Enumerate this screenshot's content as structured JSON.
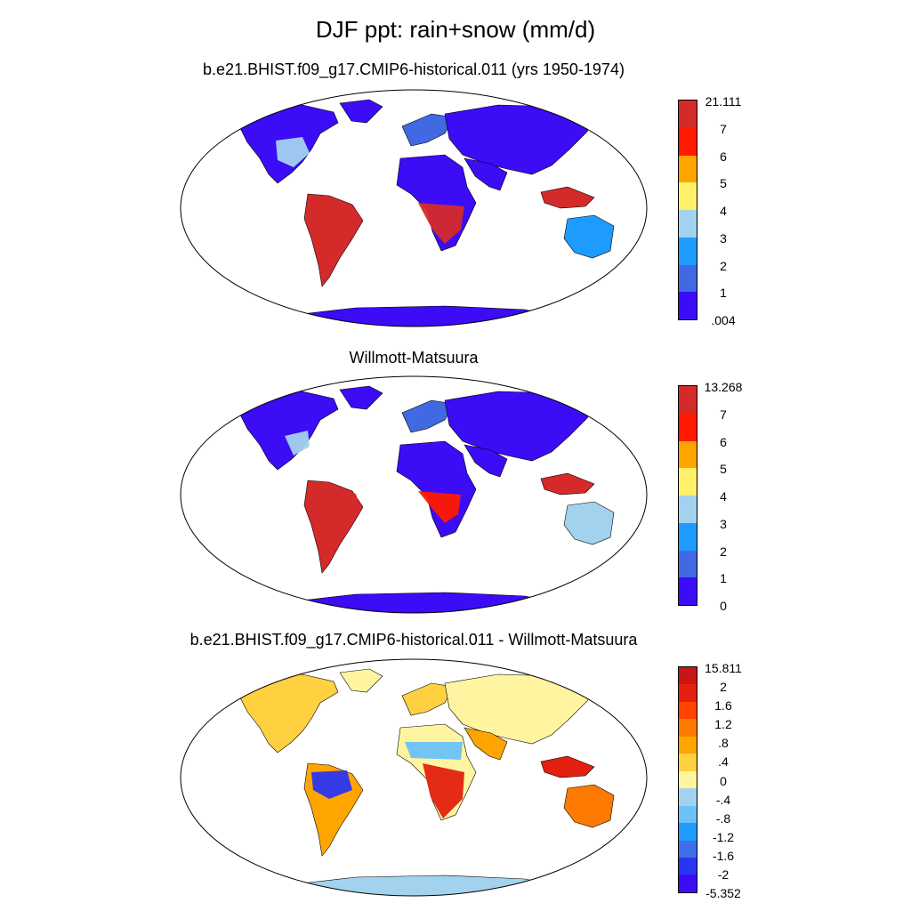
{
  "title": "DJF ppt: rain+snow (mm/d)",
  "colors": {
    "seq": [
      "#3b0cf5",
      "#4169e1",
      "#1e9bff",
      "#a3d2ef",
      "#fff06a",
      "#ffa500",
      "#ff1a00",
      "#d52a2a"
    ],
    "div": [
      "#3b0cf5",
      "#2a35f0",
      "#3d6fe8",
      "#1e9bff",
      "#6cc1f7",
      "#a3d2ef",
      "#fff5a0",
      "#ffd040",
      "#ffa500",
      "#ff7a00",
      "#ff4400",
      "#e3200f",
      "#c81515"
    ]
  },
  "panels": [
    {
      "id": "model",
      "title": "b.e21.BHIST.f09_g17.CMIP6-historical.011 (yrs 1950-1974)",
      "palette": "seq",
      "ticks": [
        "21.111",
        "7",
        "6",
        "5",
        "4",
        "3",
        "2",
        "1",
        ".004"
      ]
    },
    {
      "id": "obs",
      "title": "Willmott-Matsuura",
      "palette": "seq",
      "ticks": [
        "13.268",
        "7",
        "6",
        "5",
        "4",
        "3",
        "2",
        "1",
        "0"
      ]
    },
    {
      "id": "diff",
      "title": "b.e21.BHIST.f09_g17.CMIP6-historical.011 - Willmott-Matsuura",
      "palette": "div",
      "ticks": [
        "15.811",
        "2",
        "1.6",
        "1.2",
        ".8",
        ".4",
        "0",
        "-.4",
        "-.8",
        "-1.2",
        "-1.6",
        "-2",
        "-5.352"
      ]
    }
  ],
  "chart_data": [
    {
      "type": "heatmap",
      "title": "b.e21.BHIST.f09_g17.CMIP6-historical.011 (yrs 1950-1974)",
      "projection": "Robinson",
      "units": "mm/d",
      "levels": [
        0.004,
        1,
        2,
        3,
        4,
        5,
        6,
        7,
        21.111
      ],
      "min": 0.004,
      "max": 21.111,
      "regions": [
        {
          "name": "Amazon",
          "class": 8
        },
        {
          "name": "Southern Africa",
          "class": 8
        },
        {
          "name": "Maritime Continent",
          "class": 8
        },
        {
          "name": "Northern Australia",
          "class": 3
        },
        {
          "name": "North America",
          "class": 1
        },
        {
          "name": "Eurasia",
          "class": 1
        },
        {
          "name": "Sahara",
          "class": 1
        },
        {
          "name": "Antarctica",
          "class": 1
        }
      ]
    },
    {
      "type": "heatmap",
      "title": "Willmott-Matsuura",
      "projection": "Robinson",
      "units": "mm/d",
      "levels": [
        0,
        1,
        2,
        3,
        4,
        5,
        6,
        7,
        13.268
      ],
      "min": 0,
      "max": 13.268,
      "regions": [
        {
          "name": "Amazon",
          "class": 8
        },
        {
          "name": "Southern Africa",
          "class": 7
        },
        {
          "name": "Maritime Continent",
          "class": 8
        },
        {
          "name": "Northern Australia",
          "class": 4
        },
        {
          "name": "North America",
          "class": 1
        },
        {
          "name": "Eurasia",
          "class": 1
        },
        {
          "name": "Sahara",
          "class": 1
        },
        {
          "name": "Antarctica",
          "class": 1
        }
      ]
    },
    {
      "type": "heatmap",
      "title": "b.e21.BHIST.f09_g17.CMIP6-historical.011 - Willmott-Matsuura",
      "projection": "Robinson",
      "units": "mm/d",
      "levels": [
        -5.352,
        -2,
        -1.6,
        -1.2,
        -0.8,
        -0.4,
        0,
        0.4,
        0.8,
        1.2,
        1.6,
        2,
        15.811
      ],
      "min": -5.352,
      "max": 15.811,
      "regions": [
        {
          "name": "Amazon",
          "class": 2
        },
        {
          "name": "Southern Africa",
          "class": 12
        },
        {
          "name": "Maritime Continent",
          "class": 12
        },
        {
          "name": "Northern Australia",
          "class": 9
        },
        {
          "name": "North America",
          "class": 8
        },
        {
          "name": "Eurasia",
          "class": 7
        },
        {
          "name": "Sahara",
          "class": 6
        },
        {
          "name": "Antarctica",
          "class": 5
        }
      ]
    }
  ]
}
